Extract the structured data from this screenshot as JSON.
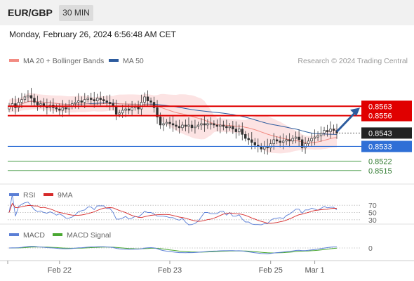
{
  "header": {
    "symbol": "EUR/GBP",
    "interval": "30 MIN",
    "datetime": "Monday, February 26, 2024 6:56:48 AM CET"
  },
  "chart_data": [
    {
      "type": "candlestick",
      "panel": "price",
      "legend": [
        {
          "label": "MA 20 + Bollinger Bands",
          "color": "#f28b82"
        },
        {
          "label": "MA 50",
          "color": "#2c5b9e"
        }
      ],
      "credit": "Research © 2024 Trading Central",
      "levels": [
        {
          "value": 0.8563,
          "label": "0.8563",
          "color": "#e00000",
          "kind": "resistance"
        },
        {
          "value": 0.8556,
          "label": "0.8556",
          "color": "#e00000",
          "kind": "resistance"
        },
        {
          "value": 0.8543,
          "label": "0.8543",
          "color": "#222222",
          "kind": "last-price"
        },
        {
          "value": 0.8533,
          "label": "0.8533",
          "color": "#2f6fd6",
          "kind": "pivot"
        },
        {
          "value": 0.8522,
          "label": "0.8522",
          "color": "#5aa65a",
          "kind": "support"
        },
        {
          "value": 0.8515,
          "label": "0.8515",
          "color": "#5aa65a",
          "kind": "support"
        }
      ],
      "ylim": [
        0.8507,
        0.8592
      ],
      "close": [
        0.8563,
        0.8565,
        0.8562,
        0.8566,
        0.8568,
        0.857,
        0.8571,
        0.8569,
        0.8566,
        0.8564,
        0.8565,
        0.8563,
        0.8562,
        0.8564,
        0.8562,
        0.8561,
        0.856,
        0.8562,
        0.8561,
        0.8563,
        0.8565,
        0.8566,
        0.8567,
        0.8566,
        0.8568,
        0.8569,
        0.8568,
        0.8567,
        0.8569,
        0.8568,
        0.8567,
        0.8566,
        0.8565,
        0.8563,
        0.8557,
        0.8558,
        0.856,
        0.8561,
        0.856,
        0.8562,
        0.8563,
        0.8561,
        0.8566,
        0.857,
        0.8567,
        0.8566,
        0.8562,
        0.8555,
        0.8549,
        0.855,
        0.8551,
        0.855,
        0.8549,
        0.8548,
        0.8547,
        0.8549,
        0.8548,
        0.8549,
        0.8547,
        0.8548,
        0.8549,
        0.855,
        0.8549,
        0.855,
        0.855,
        0.8549,
        0.8548,
        0.8549,
        0.8548,
        0.8547,
        0.8548,
        0.8546,
        0.8544,
        0.8546,
        0.8542,
        0.8539,
        0.8538,
        0.8536,
        0.8534,
        0.8533,
        0.8531,
        0.8533,
        0.8532,
        0.8535,
        0.8538,
        0.8537,
        0.8536,
        0.8537,
        0.8538,
        0.8537,
        0.8539,
        0.854,
        0.8538,
        0.8532,
        0.8535,
        0.8537,
        0.8539,
        0.854,
        0.8541,
        0.8543,
        0.8545,
        0.8544,
        0.8546,
        0.8545,
        0.8543
      ],
      "ma_window": 20,
      "ma_long_window": 50
    },
    {
      "type": "line",
      "panel": "rsi",
      "legend": [
        {
          "label": "RSI",
          "color": "#5b7fd6"
        },
        {
          "label": "9MA",
          "color": "#d62a2a"
        }
      ],
      "levels": [
        {
          "value": 70,
          "label": "70"
        },
        {
          "value": 50,
          "label": "50"
        },
        {
          "value": 30,
          "label": "30"
        }
      ],
      "ylim": [
        20,
        80
      ]
    },
    {
      "type": "line",
      "panel": "macd",
      "legend": [
        {
          "label": "MACD",
          "color": "#5b7fd6"
        },
        {
          "label": "MACD Signal",
          "color": "#4aa832"
        }
      ],
      "levels": [
        {
          "value": 0,
          "label": "0"
        }
      ],
      "ylim": [
        -0.0011,
        0.0011
      ]
    }
  ],
  "xaxis": {
    "ticks": [
      {
        "label": "Feb 22",
        "index": 16
      },
      {
        "label": "Feb 23",
        "index": 51
      },
      {
        "label": "Feb 25",
        "index": 83
      },
      {
        "label": "Mar 1",
        "index": 97
      }
    ]
  }
}
